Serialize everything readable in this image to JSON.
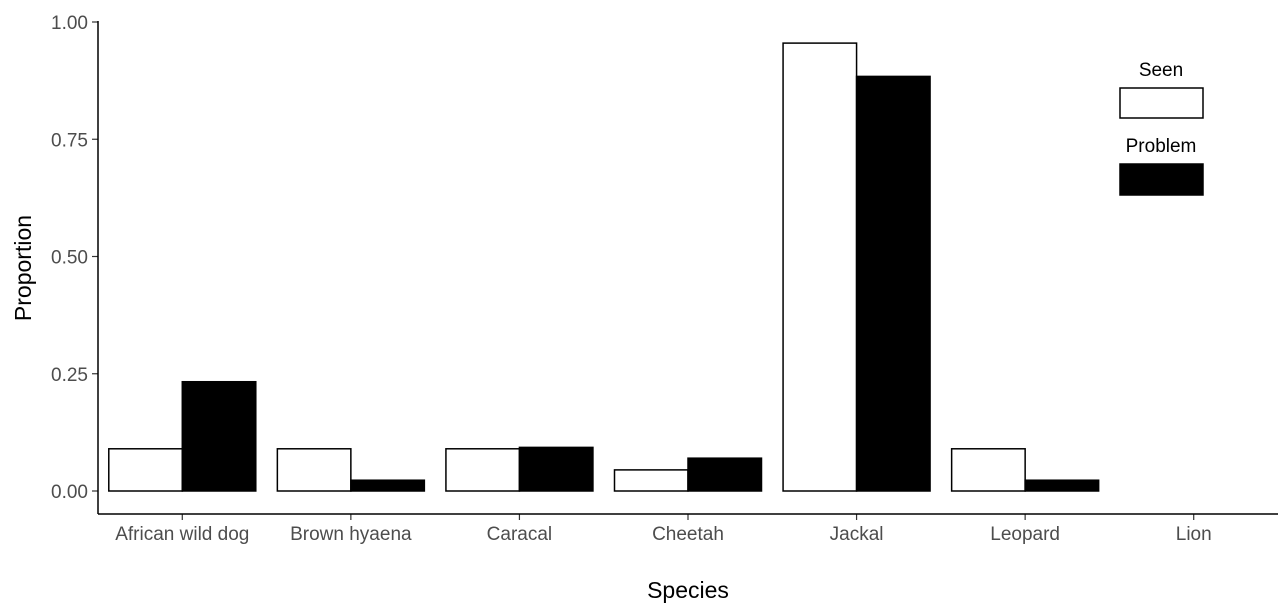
{
  "chart_data": {
    "type": "bar",
    "title": "",
    "xlabel": "Species",
    "ylabel": "Proportion",
    "ylim": [
      0,
      1.0
    ],
    "yticks": [
      "0.00",
      "0.25",
      "0.50",
      "0.75",
      "1.00"
    ],
    "categories": [
      "African wild dog",
      "Brown hyaena",
      "Caracal",
      "Cheetah",
      "Jackal",
      "Leopard",
      "Lion"
    ],
    "series": [
      {
        "name": "Seen",
        "fill": "#ffffff",
        "stroke": "#000000",
        "values": [
          0.09,
          0.09,
          0.09,
          0.045,
          0.955,
          0.09,
          0.0
        ]
      },
      {
        "name": "Problem",
        "fill": "#000000",
        "stroke": "#000000",
        "values": [
          0.233,
          0.023,
          0.093,
          0.07,
          0.884,
          0.023,
          0.0
        ]
      }
    ],
    "legend_position": "top-right",
    "grid": false
  }
}
